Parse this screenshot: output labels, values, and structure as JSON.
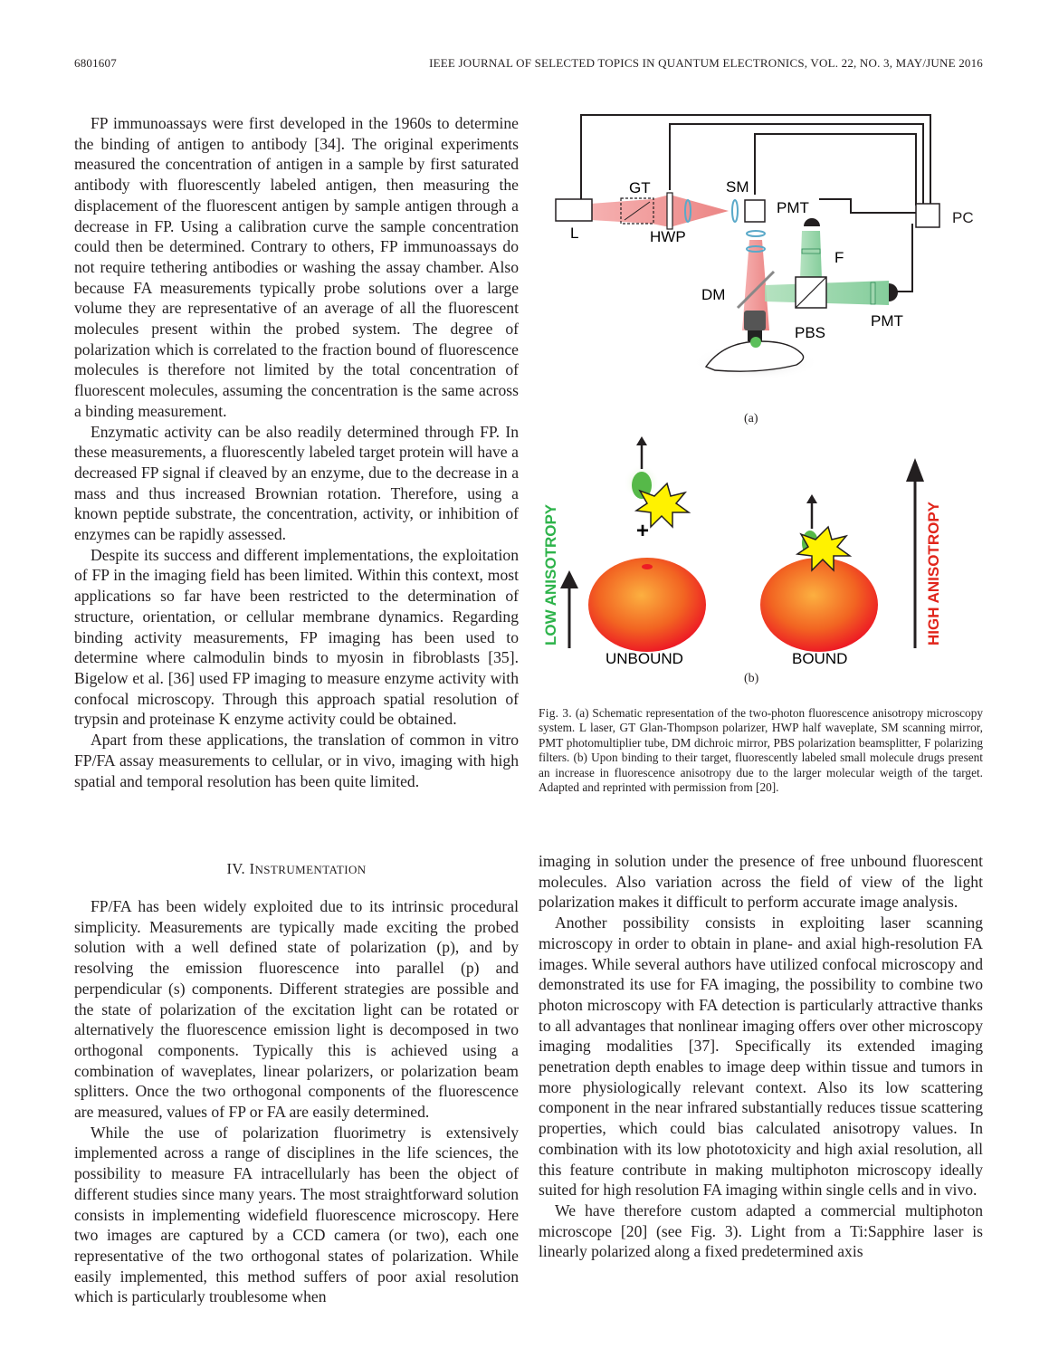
{
  "header": {
    "page_number": "6801607",
    "journal": "IEEE JOURNAL OF SELECTED TOPICS IN QUANTUM ELECTRONICS, VOL. 22, NO. 3, MAY/JUNE 2016"
  },
  "left_column": {
    "paragraphs": [
      "FP immunoassays were first developed in the 1960s to determine the binding of antigen to antibody [34]. The original experiments measured the concentration of antigen in a sample by first saturated antibody with fluorescently labeled antigen, then measuring the displacement of the fluorescent antigen by sample antigen through a decrease in FP. Using a calibration curve the sample concentration could then be determined. Contrary to others, FP immunoassays do not require tethering antibodies or washing the assay chamber. Also because FA measurements typically probe solutions over a large volume they are representative of an average of all the fluorescent molecules present within the probed system. The degree of polarization which is correlated to the fraction bound of fluorescence molecules is therefore not limited by the total concentration of fluorescent molecules, assuming the concentration is the same across a binding measurement.",
      "Enzymatic activity can be also readily determined through FP. In these measurements, a fluorescently labeled target protein will have a decreased FP signal if cleaved by an enzyme, due to the decrease in a mass and thus increased Brownian rotation. Therefore, using a known peptide substrate, the concentration, activity, or inhibition of enzymes can be rapidly assessed.",
      "Despite its success and different implementations, the exploitation of FP in the imaging field has been limited. Within this context, most applications so far have been restricted to the determination of structure, orientation, or cellular membrane dynamics. Regarding binding activity measurements, FP imaging has been used to determine where calmodulin binds to myosin in fibroblasts [35]. Bigelow et al. [36] used FP imaging to measure enzyme activity with confocal microscopy. Through this approach spatial resolution of trypsin and proteinase K enzyme activity could be obtained.",
      "Apart from these applications, the translation of common in vitro FP/FA assay measurements to cellular, or in vivo, imaging with high spatial and temporal resolution has been quite limited."
    ],
    "section_number": "IV.",
    "section_title_first": "I",
    "section_title_rest": "NSTRUMENTATION",
    "paragraphs2": [
      "FP/FA has been widely exploited due to its intrinsic procedural simplicity. Measurements are typically made exciting the probed solution with a well defined state of polarization (p), and by resolving the emission fluorescence into parallel (p) and perpendicular (s) components. Different strategies are possible and the state of polarization of the excitation light can be rotated or alternatively the fluorescence emission light is decomposed in two orthogonal components. Typically this is achieved using a combination of waveplates, linear polarizers, or polarization beam splitters. Once the two orthogonal components of the fluorescence are measured, values of FP or FA are easily determined.",
      "While the use of polarization fluorimetry is extensively implemented across a range of disciplines in the life sciences, the possibility to measure FA intracellularly has been the object of different studies since many years. The most straightforward solution consists in implementing widefield fluorescence microscopy. Here two images are captured by a CCD camera (or two), each one representative of the two orthogonal states of polarization. While easily implemented, this method suffers of poor axial resolution which is particularly troublesome when"
    ]
  },
  "right_column": {
    "paragraphs": [
      "imaging in solution under the presence of free unbound fluorescent molecules. Also variation across the field of view of the light polarization makes it difficult to perform accurate image analysis.",
      "Another possibility consists in exploiting laser scanning microscopy in order to obtain in plane- and axial high-resolution FA images. While several authors have utilized confocal microscopy and demonstrated its use for FA imaging, the possibility to combine two photon microscopy with FA detection is particularly attractive thanks to all advantages that nonlinear imaging offers over other microscopy imaging modalities [37]. Specifically its extended imaging penetration depth enables to image deep within tissue and tumors in more physiologically relevant context. Also its low scattering component in the near infrared substantially reduces tissue scattering properties, which could bias calculated anisotropy values. In combination with its low phototoxicity and high axial resolution, all this feature contribute in making multiphoton microscopy ideally suited for high resolution FA imaging within single cells and in vivo.",
      "We have therefore custom adapted a commercial multiphoton microscope [20] (see Fig. 3). Light from a Ti:Sapphire laser is linearly polarized along a fixed predetermined axis"
    ]
  },
  "figure_a": {
    "labels": {
      "L": "L",
      "GT": "GT",
      "HWP": "HWP",
      "SM": "SM",
      "PMT_top": "PMT",
      "PC": "PC",
      "F": "F",
      "DM": "DM",
      "PBS": "PBS",
      "PMT_right": "PMT"
    },
    "sublabel": "(a)"
  },
  "figure_b": {
    "low": "LOW ANISOTROPY",
    "high": "HIGH ANISOTROPY",
    "unbound": "UNBOUND",
    "bound": "BOUND",
    "plus": "+",
    "sublabel": "(b)"
  },
  "caption": {
    "label": "Fig. 3.",
    "text": "(a) Schematic representation of the two-photon fluorescence anisotropy microscopy system. L laser, GT Glan-Thompson polarizer, HWP half waveplate, SM scanning mirror, PMT photomultiplier tube, DM dichroic mirror, PBS polarization beamsplitter, F polarizing filters. (b) Upon binding to their target, fluorescently labeled small molecule drugs present an increase in fluorescence anisotropy due to the larger molecular weigth of the target. Adapted and reprinted with permission from [20]."
  },
  "colors": {
    "red_beam": "#e8706f",
    "green_beam": "#6fc48a",
    "low_green": "#2db34a",
    "high_red": "#e1251b",
    "sphere_orange": "#f26522"
  }
}
